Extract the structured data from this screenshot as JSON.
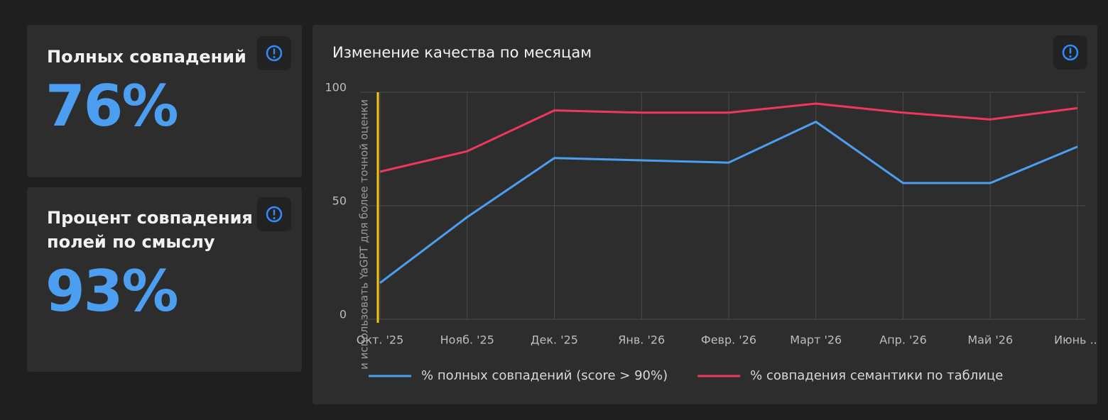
{
  "cards": [
    {
      "title": "Полных совпадений",
      "value": "76%"
    },
    {
      "title": "Процент совпадения полей по смыслу",
      "value": "93%"
    }
  ],
  "chart_data": {
    "type": "line",
    "title": "Изменение качества по месяцам",
    "categories": [
      "Окт. '25",
      "Нояб. '25",
      "Дек. '25",
      "Янв. '26",
      "Февр. '26",
      "Март '26",
      "Апр. '26",
      "Май '26",
      "Июнь ..."
    ],
    "series": [
      {
        "name": "% полных совпадений (score > 90%)",
        "color": "#4c9ff0",
        "values": [
          16,
          45,
          71,
          70,
          69,
          87,
          60,
          60,
          76
        ]
      },
      {
        "name": "% совпадения семантики по таблице",
        "color": "#f0365f",
        "values": [
          65,
          74,
          92,
          91,
          91,
          95,
          91,
          88,
          93
        ]
      }
    ],
    "ylim": [
      0,
      100
    ],
    "yticks": [
      0,
      50,
      100
    ],
    "grid": true,
    "annotation": {
      "text": "и использовать YaGPT для более точной оценки",
      "color": "#f5c518"
    }
  }
}
